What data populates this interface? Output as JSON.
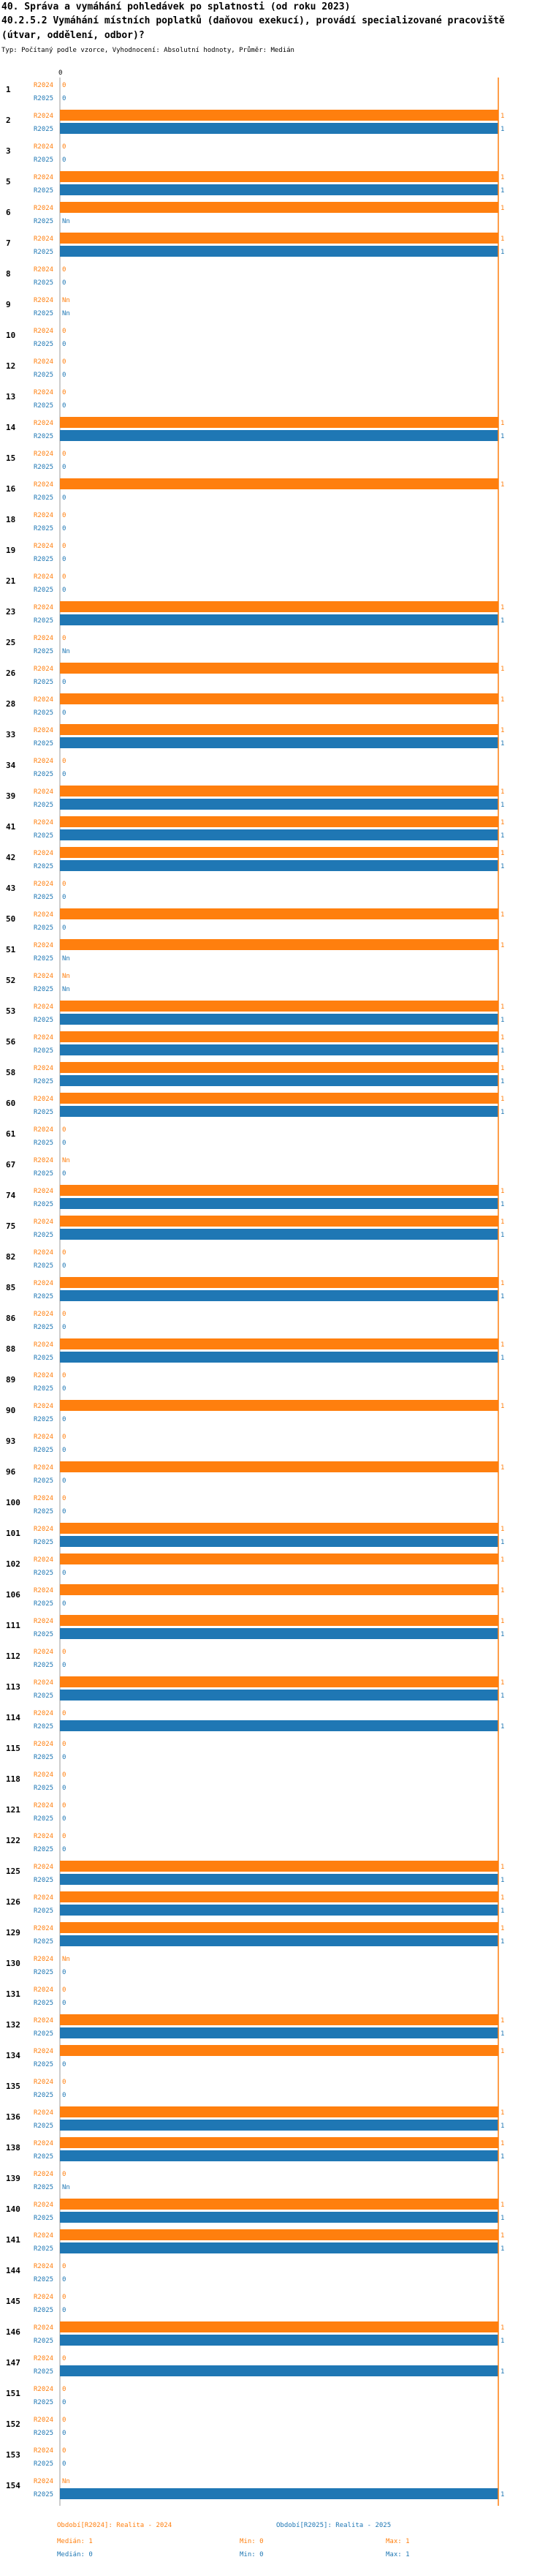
{
  "header": {
    "title": "40. Správa a vymáhání pohledávek po splatnosti (od roku 2023)",
    "question": "40.2.5.2 Vymáhání místních poplatků (daňovou exekucí), provádí specializované pracoviště (útvar, oddělení, odbor)?",
    "subtitle": "Typ: Počítaný podle vzorce, Vyhodnocení: Absolutní hodnoty, Průměr: Medián"
  },
  "colors": {
    "s2024": "#ff7f0e",
    "s2025": "#1f77b4",
    "refline": "#ff7f0e",
    "grid": "#cccccc"
  },
  "chart_data": {
    "type": "bar",
    "orientation": "horizontal",
    "axis_tick_label": "0",
    "xlim": [
      0,
      1
    ],
    "median_line": 1,
    "categories": [
      "1",
      "2",
      "3",
      "5",
      "6",
      "7",
      "8",
      "9",
      "10",
      "12",
      "13",
      "14",
      "15",
      "16",
      "18",
      "19",
      "21",
      "23",
      "25",
      "26",
      "28",
      "33",
      "34",
      "39",
      "41",
      "42",
      "43",
      "50",
      "51",
      "52",
      "53",
      "56",
      "58",
      "60",
      "61",
      "67",
      "74",
      "75",
      "82",
      "85",
      "86",
      "88",
      "89",
      "90",
      "93",
      "96",
      "100",
      "101",
      "102",
      "106",
      "111",
      "112",
      "113",
      "114",
      "115",
      "118",
      "121",
      "122",
      "125",
      "126",
      "129",
      "130",
      "131",
      "132",
      "134",
      "135",
      "136",
      "138",
      "139",
      "140",
      "141",
      "144",
      "145",
      "146",
      "147",
      "151",
      "152",
      "153",
      "154"
    ],
    "series": [
      {
        "name": "R2024",
        "values": [
          0,
          1,
          0,
          1,
          1,
          1,
          0,
          null,
          0,
          0,
          0,
          1,
          0,
          1,
          0,
          0,
          0,
          1,
          0,
          1,
          1,
          1,
          0,
          1,
          1,
          1,
          0,
          1,
          1,
          null,
          1,
          1,
          1,
          1,
          0,
          null,
          1,
          1,
          0,
          1,
          0,
          1,
          0,
          1,
          0,
          1,
          0,
          1,
          1,
          1,
          1,
          0,
          1,
          0,
          0,
          0,
          0,
          0,
          1,
          1,
          1,
          null,
          0,
          1,
          1,
          0,
          1,
          1,
          0,
          1,
          1,
          0,
          0,
          1,
          0,
          0,
          0,
          0,
          null
        ]
      },
      {
        "name": "R2025",
        "values": [
          0,
          1,
          0,
          1,
          null,
          1,
          0,
          null,
          0,
          0,
          0,
          1,
          0,
          0,
          0,
          0,
          0,
          1,
          null,
          0,
          0,
          1,
          0,
          1,
          1,
          1,
          0,
          0,
          null,
          null,
          1,
          1,
          1,
          1,
          0,
          0,
          1,
          1,
          0,
          1,
          0,
          1,
          0,
          0,
          0,
          0,
          0,
          1,
          0,
          0,
          1,
          0,
          1,
          1,
          0,
          0,
          0,
          0,
          1,
          1,
          1,
          0,
          0,
          1,
          0,
          0,
          1,
          1,
          null,
          1,
          1,
          0,
          0,
          1,
          1,
          0,
          0,
          0,
          1
        ]
      }
    ],
    "legend": [
      {
        "label": "Období[R2024]: Realita - 2024",
        "median": "Medián: 1",
        "min": "Min: 0",
        "max": "Max: 1"
      },
      {
        "label": "Období[R2025]: Realita - 2025",
        "median": "Medián: 0",
        "min": "Min: 0",
        "max": "Max: 1"
      }
    ],
    "na_label": "Nn"
  }
}
